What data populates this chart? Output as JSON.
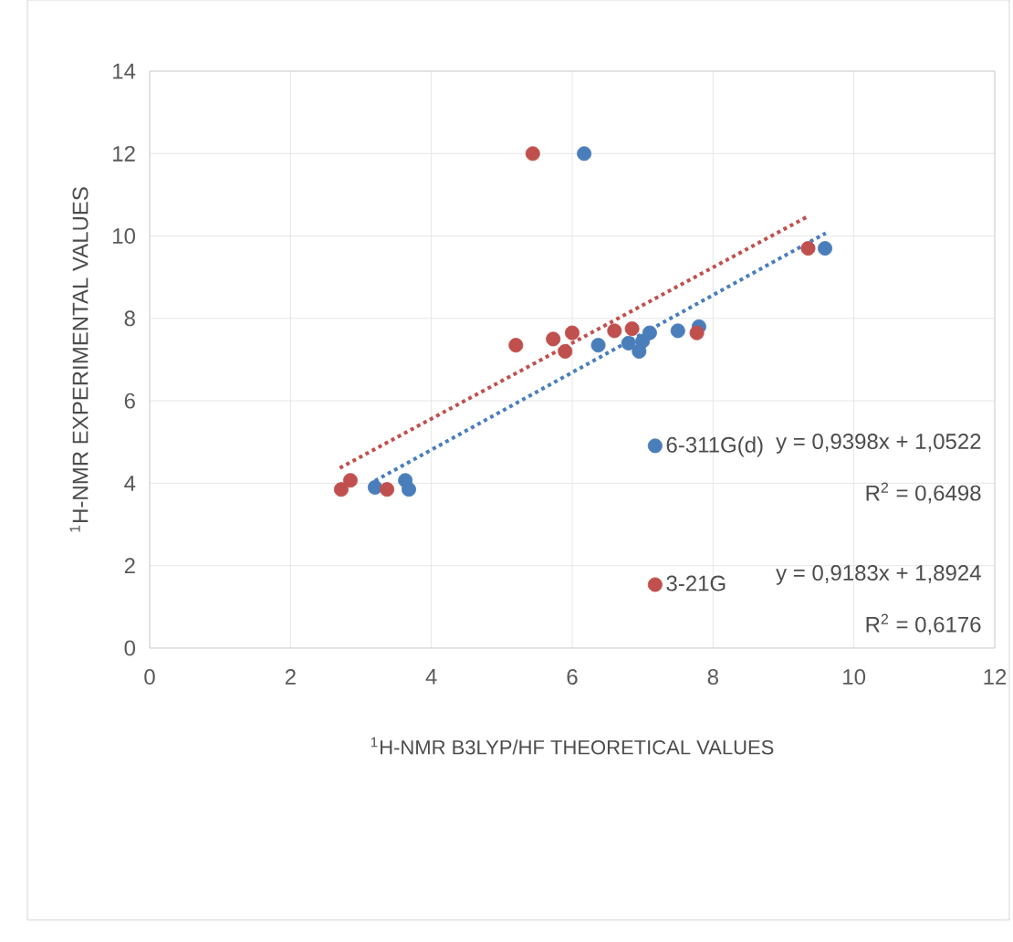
{
  "chart_data": {
    "type": "scatter",
    "xlabel": "$^{1}$H-NMR B3LYP/HF THEORETICAL VALUES",
    "ylabel": "$^{1}$H-NMR EXPERIMENTAL VALUES",
    "xlim": [
      0,
      12
    ],
    "ylim": [
      0,
      14
    ],
    "xticks": [
      0,
      2,
      4,
      6,
      8,
      10,
      12
    ],
    "yticks": [
      0,
      2,
      4,
      6,
      8,
      10,
      12,
      14
    ],
    "grid": true,
    "legend": "bottom right",
    "series": [
      {
        "name": "6-311G(d)",
        "color": "#4a7ebb",
        "marker": "circle",
        "x": [
          6.17,
          6.37,
          6.8,
          6.95,
          7.0,
          7.1,
          7.5,
          7.8,
          9.59,
          3.2,
          3.63,
          3.68
        ],
        "values": [
          12.0,
          7.35,
          7.4,
          7.2,
          7.45,
          7.65,
          7.7,
          7.8,
          9.7,
          3.9,
          4.07,
          3.85
        ]
      },
      {
        "name": "3-21G",
        "color": "#c0504d",
        "marker": "circle",
        "x": [
          5.44,
          5.2,
          5.73,
          5.9,
          6.0,
          6.6,
          6.85,
          7.77,
          9.35,
          2.72,
          2.85,
          3.37
        ],
        "values": [
          12.0,
          7.35,
          7.5,
          7.2,
          7.65,
          7.7,
          7.75,
          7.65,
          9.7,
          3.85,
          4.07,
          3.85
        ]
      },
      {
        "type": "line",
        "color": "#4a7ebb",
        "line_style": "dotted",
        "marker": "none",
        "x": [
          3.2,
          9.6
        ],
        "values": [
          4.06,
          10.07
        ]
      },
      {
        "type": "line",
        "color": "#c0504d",
        "line_style": "dotted",
        "marker": "none",
        "x": [
          2.7,
          9.35
        ],
        "values": [
          4.37,
          10.48
        ]
      }
    ],
    "annotations": [
      "y = 0,9398x + 1,0522",
      "R$^{2}$ = 0,6498",
      "y = 0,9183x + 1,8924",
      "R$^{2}$ = 0,6176"
    ]
  }
}
